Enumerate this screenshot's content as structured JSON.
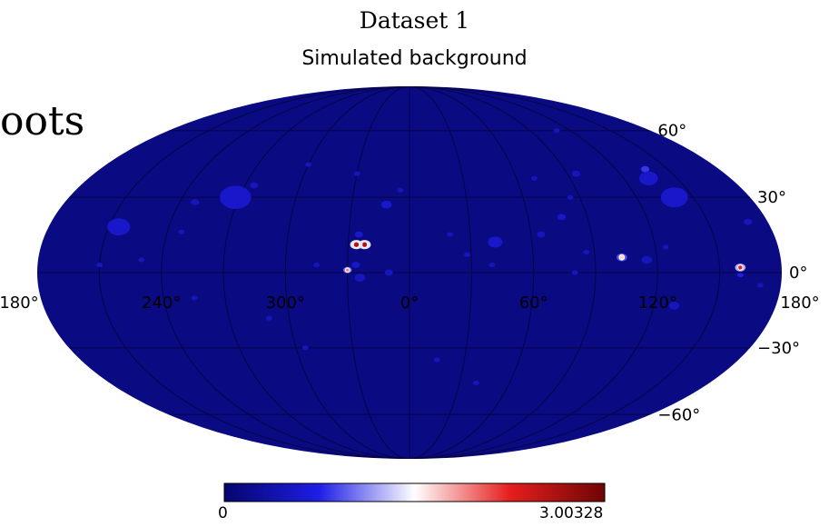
{
  "title": "Dataset 1",
  "subtitle": "Simulated background",
  "cut_text": "oots",
  "map": {
    "projection": "mollweide",
    "background_color": "#0a0a82",
    "graticule_color": "#050545",
    "lat_labels": [
      "60°",
      "30°",
      "0°",
      "−30°",
      "−60°"
    ],
    "lon_labels": [
      "180°",
      "120°",
      "60°",
      "0°",
      "300°",
      "240°",
      "180°"
    ]
  },
  "colorbar": {
    "min": "0",
    "max": "3.00328",
    "colors": [
      "#05056e",
      "#1e1ee6",
      "#ffffff",
      "#e61e1e",
      "#6e0505"
    ]
  },
  "sources": [
    {
      "lon": 137,
      "lat": 42,
      "r": 4,
      "level": 0.5
    },
    {
      "lon": 134,
      "lat": 38,
      "r": 9,
      "level": 0.35
    },
    {
      "lon": 140,
      "lat": 30,
      "r": 13,
      "level": 0.35
    },
    {
      "lon": 95,
      "lat": 40,
      "r": 4,
      "level": 0.3
    },
    {
      "lon": 70,
      "lat": 38,
      "r": 3,
      "level": 0.3
    },
    {
      "lon": 85,
      "lat": 30,
      "r": 3,
      "level": 0.3
    },
    {
      "lon": 77,
      "lat": 22,
      "r": 4,
      "level": 0.35
    },
    {
      "lon": 65,
      "lat": 15,
      "r": 4,
      "level": 0.3
    },
    {
      "lon": 42,
      "lat": 12,
      "r": 7,
      "level": 0.35
    },
    {
      "lon": 40,
      "lat": 3,
      "r": 3,
      "level": 0.3
    },
    {
      "lon": 125,
      "lat": 10,
      "r": 3,
      "level": 0.3
    },
    {
      "lon": 115,
      "lat": 5,
      "r": 5,
      "level": 0.3
    },
    {
      "lon": 103,
      "lat": 6,
      "r": 5,
      "level": 0.55
    },
    {
      "lon": 160,
      "lat": 2,
      "r": 5,
      "level": 0.75
    },
    {
      "lon": 160,
      "lat": -1,
      "r": 3,
      "level": 0.45
    },
    {
      "lon": 130,
      "lat": -13,
      "r": 5,
      "level": 0.3
    },
    {
      "lon": 86,
      "lat": 8,
      "r": 3,
      "level": 0.3
    },
    {
      "lon": 80,
      "lat": 0,
      "r": 3,
      "level": 0.3
    },
    {
      "lon": 20,
      "lat": 15,
      "r": 3,
      "level": 0.3
    },
    {
      "lon": 28,
      "lat": 7,
      "r": 3,
      "level": 0.3
    },
    {
      "lon": -5,
      "lat": 33,
      "r": 3,
      "level": 0.3
    },
    {
      "lon": -12,
      "lat": 27,
      "r": 5,
      "level": 0.35
    },
    {
      "lon": -25,
      "lat": 15,
      "r": 4,
      "level": 0.35
    },
    {
      "lon": -22,
      "lat": 11,
      "r": 6,
      "level": 0.85
    },
    {
      "lon": -26,
      "lat": 11,
      "r": 6,
      "level": 0.85
    },
    {
      "lon": -26,
      "lat": 3,
      "r": 4,
      "level": 0.35
    },
    {
      "lon": -30,
      "lat": 1,
      "r": 4,
      "level": 0.65
    },
    {
      "lon": -10,
      "lat": 0,
      "r": 4,
      "level": 0.3
    },
    {
      "lon": -24,
      "lat": -2,
      "r": 5,
      "level": 0.3
    },
    {
      "lon": -30,
      "lat": 40,
      "r": 3,
      "level": 0.3
    },
    {
      "lon": -45,
      "lat": 3,
      "r": 3,
      "level": 0.3
    },
    {
      "lon": -60,
      "lat": 44,
      "r": 3,
      "level": 0.3
    },
    {
      "lon": -92,
      "lat": 30,
      "r": 15,
      "level": 0.35
    },
    {
      "lon": -85,
      "lat": 35,
      "r": 4,
      "level": 0.3
    },
    {
      "lon": -112,
      "lat": 28,
      "r": 4,
      "level": 0.3
    },
    {
      "lon": -145,
      "lat": 18,
      "r": 11,
      "level": 0.35
    },
    {
      "lon": -113,
      "lat": 16,
      "r": 3,
      "level": 0.3
    },
    {
      "lon": -130,
      "lat": 5,
      "r": 3,
      "level": 0.3
    },
    {
      "lon": -150,
      "lat": 3,
      "r": 3,
      "level": 0.3
    },
    {
      "lon": -105,
      "lat": -10,
      "r": 3,
      "level": 0.3
    },
    {
      "lon": -70,
      "lat": -18,
      "r": 3,
      "level": 0.3
    },
    {
      "lon": -55,
      "lat": -30,
      "r": 3,
      "level": 0.3
    },
    {
      "lon": 15,
      "lat": -35,
      "r": 3,
      "level": 0.3
    },
    {
      "lon": 40,
      "lat": -45,
      "r": 3,
      "level": 0.3
    },
    {
      "lon": 170,
      "lat": 20,
      "r": 4,
      "level": 0.3
    },
    {
      "lon": 170,
      "lat": -5,
      "r": 3,
      "level": 0.3
    },
    {
      "lon": 110,
      "lat": 60,
      "r": 3,
      "level": 0.3
    }
  ]
}
